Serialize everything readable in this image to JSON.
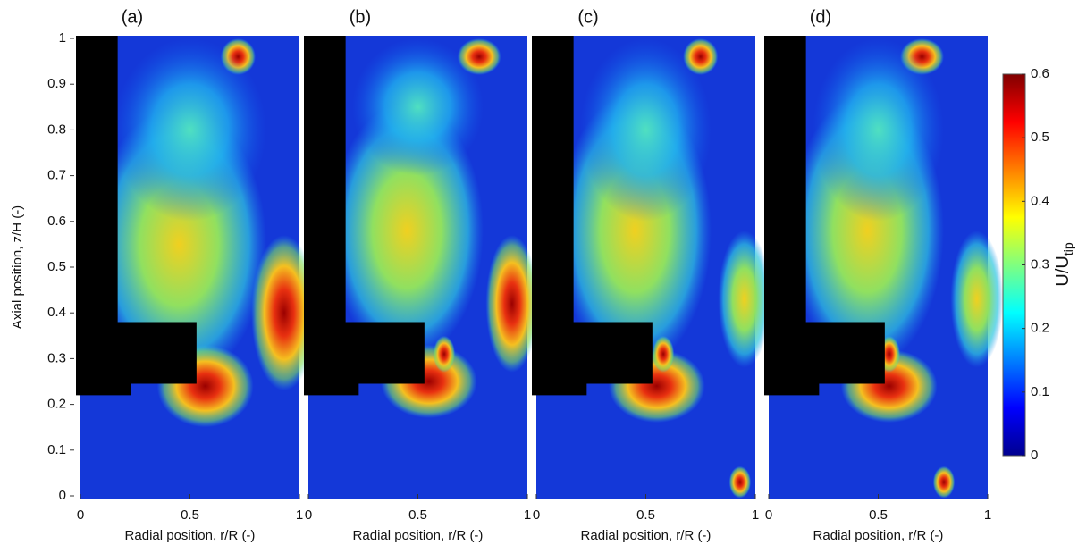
{
  "chart_data": [
    {
      "type": "contour",
      "panel_label": "(a)",
      "x_label": "Radial position, r/R (-)",
      "y_label": "Axial position, z/H (-)",
      "xlim": [
        0,
        1
      ],
      "xticks": [
        0,
        0.5,
        1
      ],
      "ylim": [
        0,
        1
      ],
      "yticks": [
        0,
        0.1,
        0.2,
        0.3,
        0.4,
        0.5,
        0.6,
        0.7,
        0.8,
        0.9,
        1
      ]
    },
    {
      "type": "contour",
      "panel_label": "(b)",
      "x_label": "Radial position, r/R (-)",
      "xlim": [
        0,
        1
      ],
      "xticks": [
        0,
        0.5,
        1
      ],
      "ylim": [
        0,
        1
      ]
    },
    {
      "type": "contour",
      "panel_label": "(c)",
      "x_label": "Radial position, r/R (-)",
      "xlim": [
        0,
        1
      ],
      "xticks": [
        0,
        0.5,
        1
      ],
      "ylim": [
        0,
        1
      ]
    },
    {
      "type": "contour",
      "panel_label": "(d)",
      "x_label": "Radial position, r/R (-)",
      "xlim": [
        0,
        1
      ],
      "xticks": [
        0,
        0.5,
        1
      ],
      "ylim": [
        0,
        1
      ]
    },
    {
      "type": "colorbar",
      "label": "U/U",
      "label_subscript": "tip",
      "ylim": [
        0,
        0.6
      ],
      "yticks": [
        0,
        0.1,
        0.2,
        0.3,
        0.4,
        0.5,
        0.6
      ]
    }
  ]
}
